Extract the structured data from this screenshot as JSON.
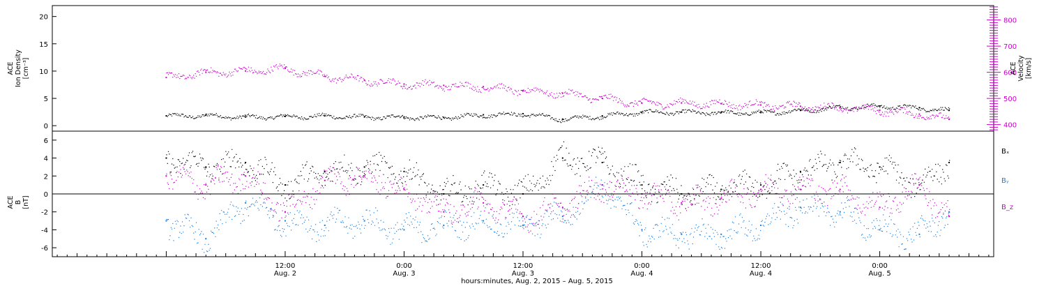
{
  "chart_data": [
    {
      "type": "scatter",
      "panel": "ion-density-velocity",
      "left_axis": {
        "label_lines": [
          "ACE",
          "Ion Density",
          "[cm⁻³]"
        ],
        "ylim": [
          -1,
          22
        ],
        "ticks": [
          0,
          5,
          10,
          15,
          20
        ]
      },
      "right_axis": {
        "label_lines": [
          "ACE",
          "Velocity",
          "[km/s]"
        ],
        "ylim": [
          375,
          855
        ],
        "ticks": [
          400,
          500,
          600,
          700,
          800
        ],
        "color": "#cc00cc"
      },
      "series": [
        {
          "name": "",
          "axis": "left",
          "color": "#000000",
          "x_hours": [
            0,
            4,
            8,
            12,
            16,
            20,
            24,
            28,
            32,
            36,
            40,
            44,
            48,
            52,
            56,
            60,
            64,
            68,
            72,
            76,
            79
          ],
          "values": [
            1.8,
            1.9,
            1.6,
            1.7,
            1.8,
            1.6,
            1.6,
            1.5,
            2.0,
            2.2,
            1.2,
            1.8,
            2.5,
            2.5,
            2.4,
            2.4,
            2.8,
            3.4,
            3.6,
            3.3,
            2.8
          ]
        },
        {
          "name": "",
          "axis": "right",
          "color": "#cc00cc",
          "x_hours": [
            0,
            4,
            8,
            12,
            16,
            20,
            24,
            28,
            32,
            36,
            40,
            44,
            48,
            52,
            56,
            60,
            64,
            68,
            72,
            76,
            79
          ],
          "values": [
            580,
            600,
            605,
            615,
            585,
            570,
            555,
            550,
            545,
            530,
            520,
            500,
            482,
            483,
            480,
            475,
            470,
            465,
            455,
            440,
            420
          ]
        }
      ]
    },
    {
      "type": "scatter",
      "panel": "magnetic-field",
      "left_axis": {
        "label_lines": [
          "ACE",
          "B",
          "[nT]"
        ],
        "ylim": [
          -7,
          7
        ],
        "ticks": [
          -6,
          -4,
          -2,
          0,
          2,
          4,
          6
        ]
      },
      "zero_line": true,
      "legend_position": "right",
      "series": [
        {
          "name": "Bₓ",
          "color": "#000000",
          "x_hours": [
            0,
            4,
            8,
            12,
            16,
            20,
            24,
            28,
            32,
            36,
            40,
            44,
            48,
            52,
            56,
            60,
            64,
            68,
            72,
            76,
            79
          ],
          "values": [
            4.0,
            3.0,
            3.5,
            1.0,
            2.5,
            3.0,
            2.5,
            0.0,
            1.0,
            0.0,
            4.0,
            3.5,
            1.0,
            0.0,
            0.5,
            1.0,
            2.5,
            3.5,
            3.0,
            1.0,
            3.5
          ]
        },
        {
          "name": "Bᵧ",
          "color": "#1a80e0",
          "x_hours": [
            0,
            4,
            8,
            12,
            16,
            20,
            24,
            28,
            32,
            36,
            40,
            44,
            48,
            52,
            56,
            60,
            64,
            68,
            72,
            76,
            79
          ],
          "values": [
            -3.0,
            -5.0,
            -1.0,
            -3.0,
            -3.5,
            -3.0,
            -4.0,
            -3.5,
            -3.0,
            -3.5,
            -2.5,
            1.0,
            -4.0,
            -4.5,
            -4.5,
            -3.5,
            -1.5,
            -2.0,
            -4.0,
            -4.5,
            -2.0
          ]
        },
        {
          "name": "B_z",
          "color": "#cc00cc",
          "x_hours": [
            0,
            4,
            8,
            12,
            16,
            20,
            24,
            28,
            32,
            36,
            40,
            44,
            48,
            52,
            56,
            60,
            64,
            68,
            72,
            76,
            79
          ],
          "values": [
            2.0,
            1.0,
            2.0,
            -2.0,
            1.5,
            2.0,
            0.5,
            -2.0,
            -1.0,
            -2.5,
            -1.5,
            1.0,
            0.0,
            -1.0,
            -0.5,
            0.5,
            0.5,
            0.5,
            -1.5,
            1.0,
            -2.5
          ]
        }
      ]
    }
  ],
  "x_axis": {
    "range_hours": [
      -11.5,
      83.5
    ],
    "ticks": [
      {
        "time": "12:00",
        "date": "Aug. 2",
        "hour": 12
      },
      {
        "time": "0:00",
        "date": "Aug. 3",
        "hour": 24
      },
      {
        "time": "12:00",
        "date": "Aug. 3",
        "hour": 36
      },
      {
        "time": "0:00",
        "date": "Aug. 4",
        "hour": 48
      },
      {
        "time": "12:00",
        "date": "Aug. 4",
        "hour": 60
      },
      {
        "time": "0:00",
        "date": "Aug. 5",
        "hour": 72
      }
    ],
    "label": "hours:minutes, Aug.  2, 2015 – Aug.  5, 2015"
  }
}
